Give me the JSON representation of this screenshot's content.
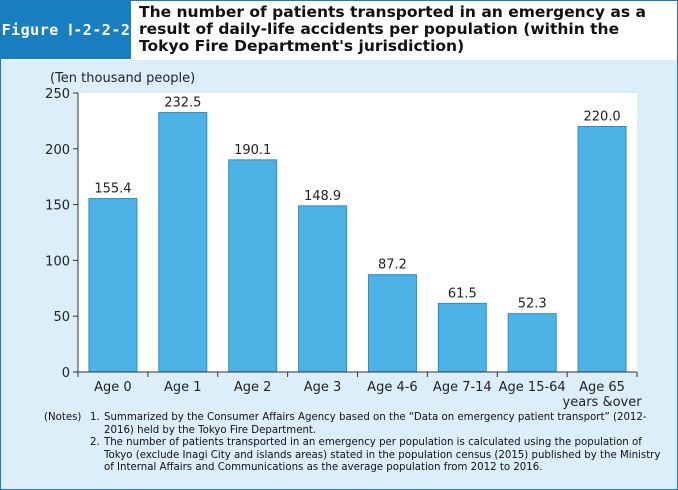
{
  "figure": {
    "label": "Figure Ⅰ-2-2-2",
    "title": "The number of patients transported in an emergency as a result of daily-life accidents per population (within the Tokyo Fire Department's jurisdiction)"
  },
  "chart_data": {
    "type": "bar",
    "ylabel": "(Ten thousand people)",
    "ylim": [
      0,
      250
    ],
    "yticks": [
      0,
      50,
      100,
      150,
      200,
      250
    ],
    "categories": [
      "Age 0",
      "Age 1",
      "Age 2",
      "Age 3",
      "Age 4-6",
      "Age 7-14",
      "Age 15-64",
      "Age 65 years &over"
    ],
    "category_lines": [
      [
        "Age 0"
      ],
      [
        "Age 1"
      ],
      [
        "Age 2"
      ],
      [
        "Age 3"
      ],
      [
        "Age 4-6"
      ],
      [
        "Age 7-14"
      ],
      [
        "Age 15-64"
      ],
      [
        "Age 65",
        "years &over"
      ]
    ],
    "values": [
      155.4,
      232.5,
      190.1,
      148.9,
      87.2,
      61.5,
      52.3,
      220.0
    ],
    "value_labels": [
      "155.4",
      "232.5",
      "190.1",
      "148.9",
      "87.2",
      "61.5",
      "52.3",
      "220.0"
    ],
    "bar_color": "#4db3e6",
    "bar_edge_color": "#2a8ec8"
  },
  "notes": {
    "lead": "(Notes)",
    "items": [
      {
        "num": "1.",
        "text": "Summarized by the Consumer Affairs Agency based on the “Data on emergency patient transport” (2012-2016) held by the Tokyo Fire Department."
      },
      {
        "num": "2.",
        "text": "The number of patients transported in an emergency per population is calculated using the population of Tokyo (exclude Inagi City and islands areas) stated in the population census (2015) published by the Ministry of Internal Affairs and Communications as the average population from 2012 to 2016."
      }
    ]
  }
}
